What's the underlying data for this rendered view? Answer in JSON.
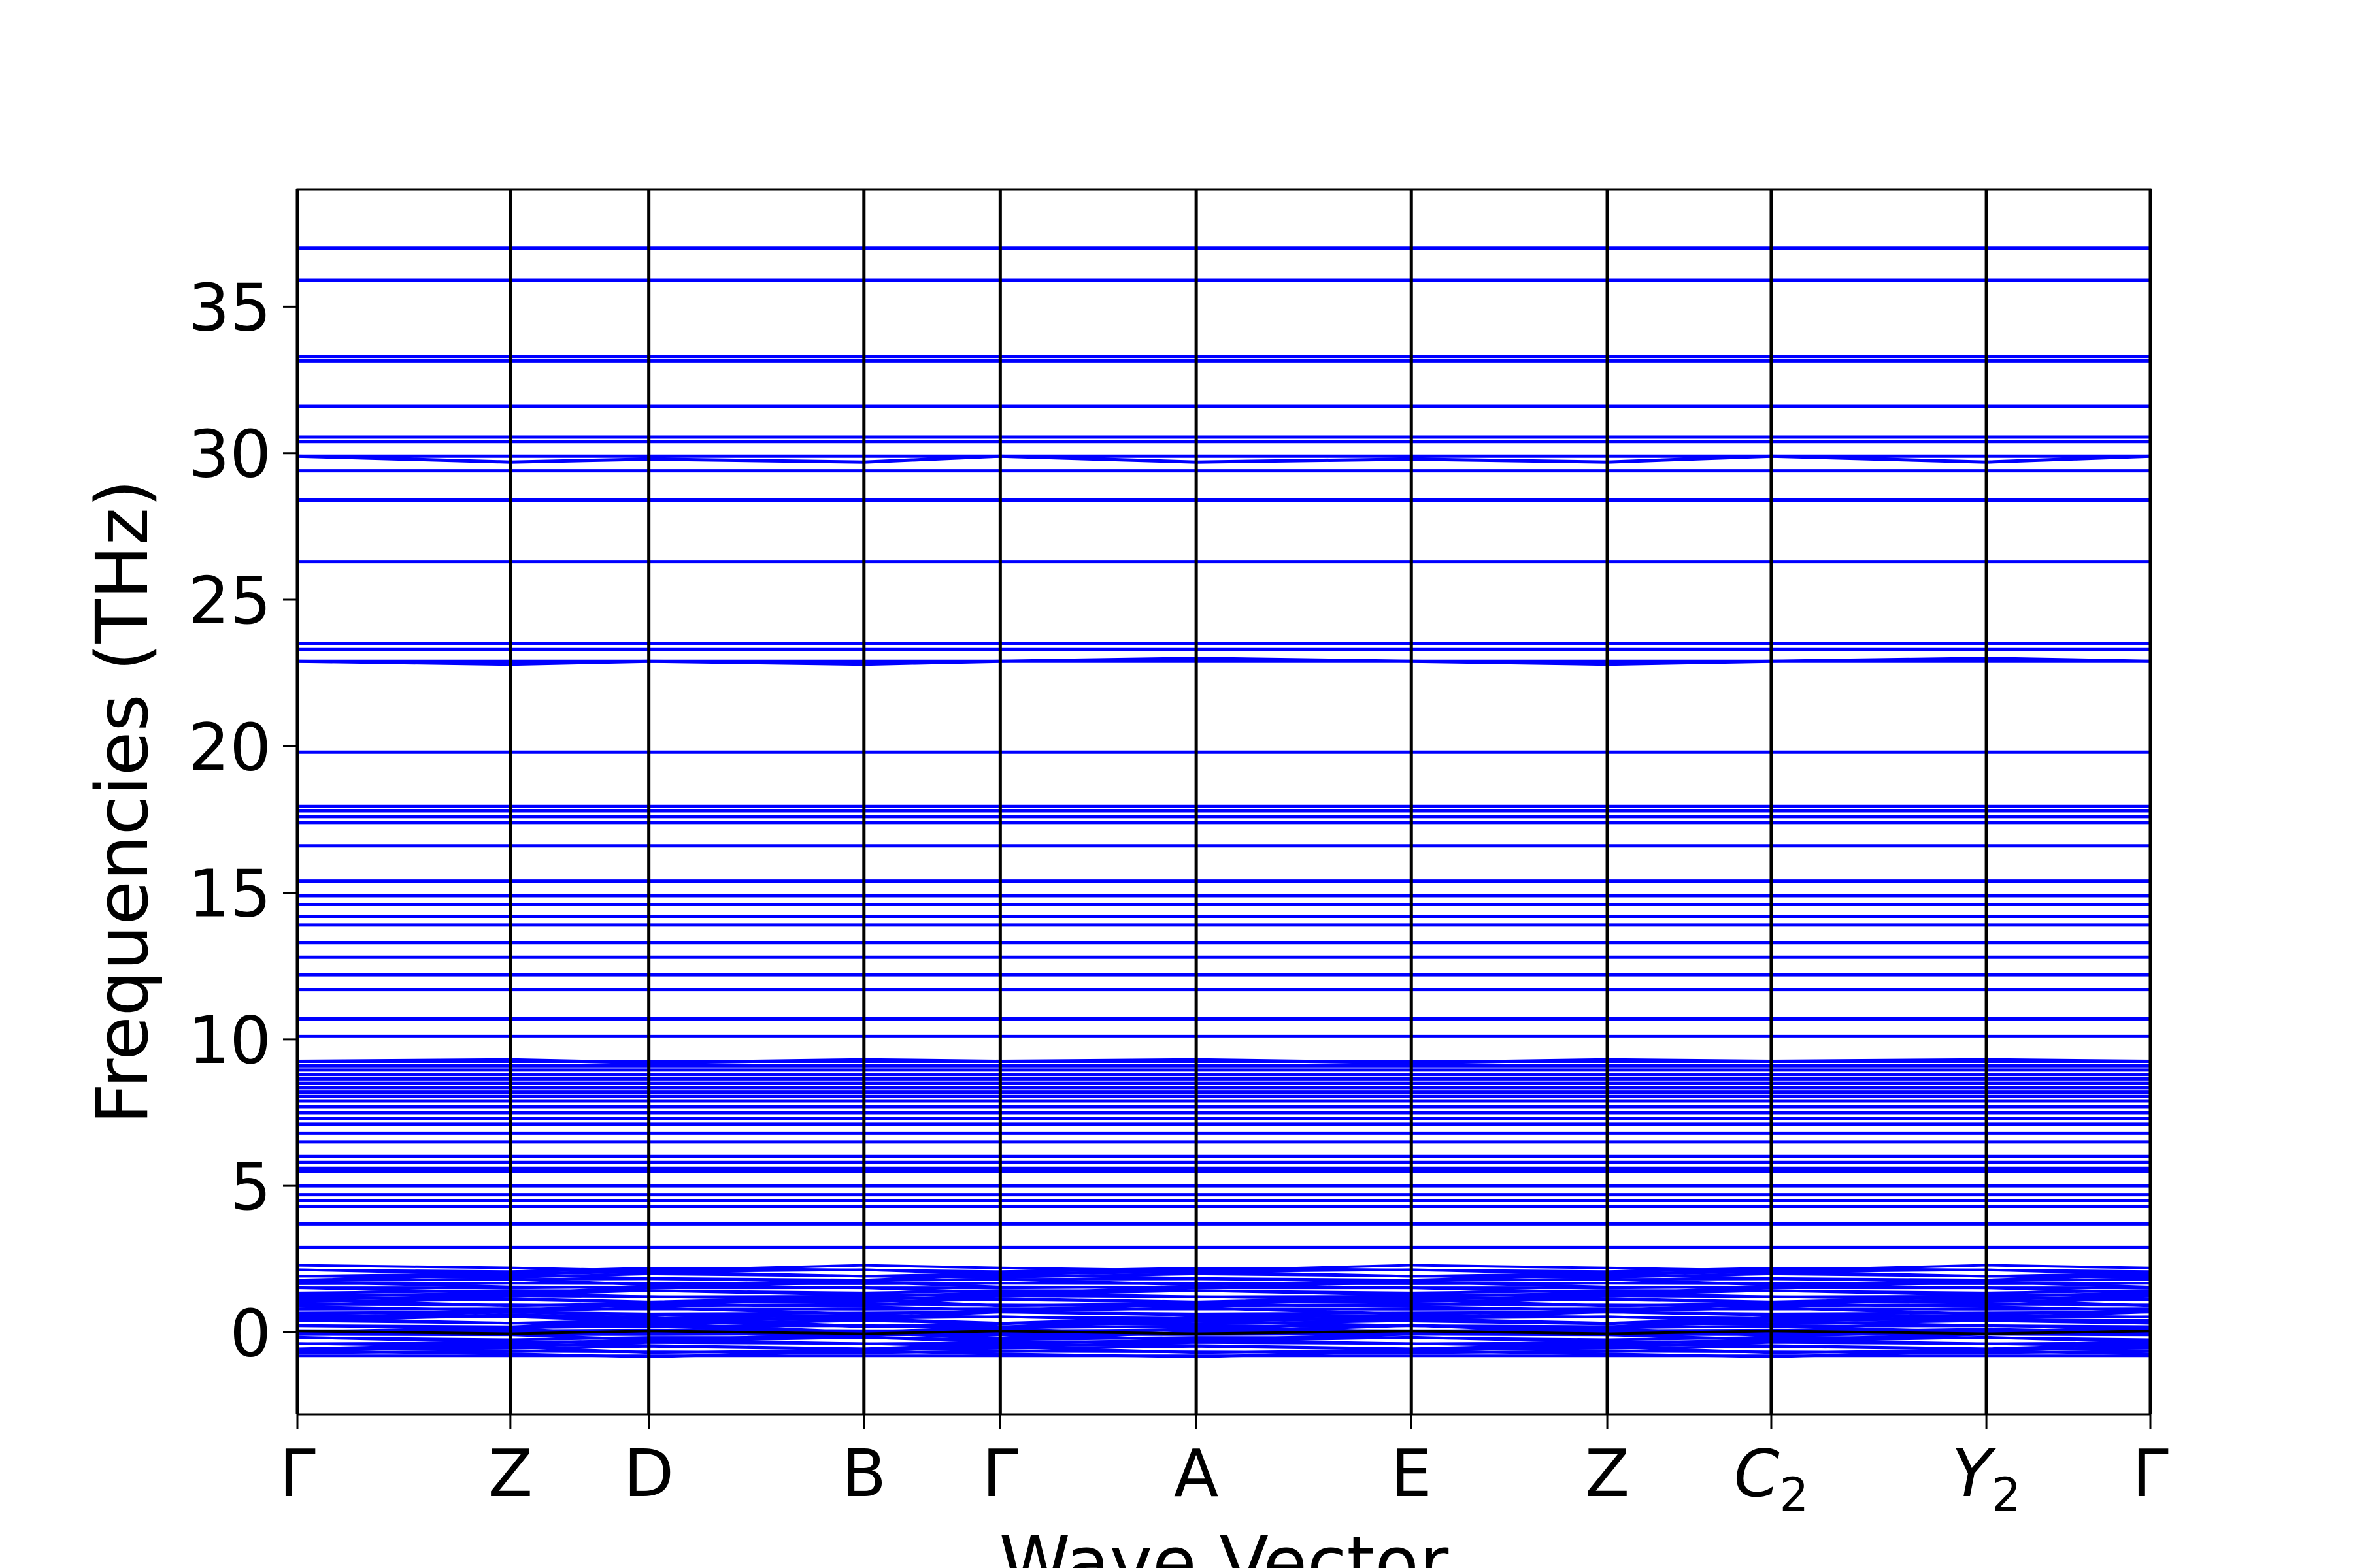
{
  "chart_data": {
    "type": "line",
    "xlabel": "Wave Vector",
    "ylabel": "Frequencies (THz)",
    "ylim": [
      -2.8,
      39.0
    ],
    "yticks": [
      0,
      5,
      10,
      15,
      20,
      25,
      30,
      35
    ],
    "xticks": [
      {
        "label": "Γ",
        "sub": "",
        "x": 0.0
      },
      {
        "label": "Z",
        "sub": "",
        "x": 1.0
      },
      {
        "label": "D",
        "sub": "",
        "x": 1.65
      },
      {
        "label": "B",
        "sub": "",
        "x": 2.66
      },
      {
        "label": "Γ",
        "sub": "",
        "x": 3.3
      },
      {
        "label": "A",
        "sub": "",
        "x": 4.22
      },
      {
        "label": "E",
        "sub": "",
        "x": 5.23
      },
      {
        "label": "Z",
        "sub": "",
        "x": 6.15
      },
      {
        "label": "C",
        "sub": "2",
        "x": 6.92
      },
      {
        "label": "Y",
        "sub": "2",
        "x": 7.93
      },
      {
        "label": "Γ",
        "sub": "",
        "x": 8.7
      }
    ],
    "xlim": [
      0.0,
      8.7
    ],
    "grid": false,
    "band_color": "#0000ff",
    "segment_color": "#000000",
    "flat_bands": [
      37.0,
      35.9,
      33.3,
      33.15,
      31.6,
      30.55,
      30.4,
      29.9,
      29.4,
      28.4,
      26.3,
      23.5,
      23.3,
      22.9,
      19.8,
      17.95,
      17.8,
      17.6,
      17.4,
      16.6,
      15.4,
      14.9,
      14.6,
      14.2,
      13.9,
      13.3,
      12.8,
      12.2,
      11.7,
      10.7,
      10.1,
      9.25,
      9.1,
      8.95,
      8.8,
      8.65,
      8.5,
      8.35,
      8.2,
      8.05,
      7.9,
      7.7,
      7.5,
      7.3,
      7.1,
      6.8,
      6.5,
      6.0,
      5.8,
      5.6,
      5.5,
      5.0,
      4.7,
      4.5,
      4.3,
      3.7,
      2.9
    ],
    "low_band_range": [
      -0.8,
      2.2
    ],
    "low_band_count": 46,
    "dispersive_bands": [
      {
        "values": [
          9.25,
          9.3,
          9.2,
          9.3,
          9.25,
          9.3,
          9.2,
          9.3,
          9.25,
          9.3,
          9.25
        ]
      },
      {
        "values": [
          29.9,
          29.7,
          29.8,
          29.7,
          29.9,
          29.7,
          29.8,
          29.7,
          29.9,
          29.7,
          29.9
        ]
      },
      {
        "values": [
          22.9,
          22.8,
          22.9,
          22.8,
          22.9,
          23.0,
          22.9,
          22.8,
          22.9,
          23.0,
          22.9
        ]
      },
      {
        "values": [
          0.0,
          0.15,
          0.3,
          0.0,
          -0.2,
          0.0,
          0.25,
          0.0,
          0.0,
          0.1,
          0.0
        ]
      },
      {
        "values": [
          0.05,
          0.0,
          0.0,
          -0.1,
          0.0,
          0.1,
          0.0,
          0.1,
          -0.1,
          0.0,
          0.0
        ]
      },
      {
        "values": [
          0.4,
          0.6,
          0.5,
          0.2,
          0.3,
          0.5,
          0.4,
          0.3,
          0.5,
          0.4,
          0.4
        ]
      }
    ]
  }
}
